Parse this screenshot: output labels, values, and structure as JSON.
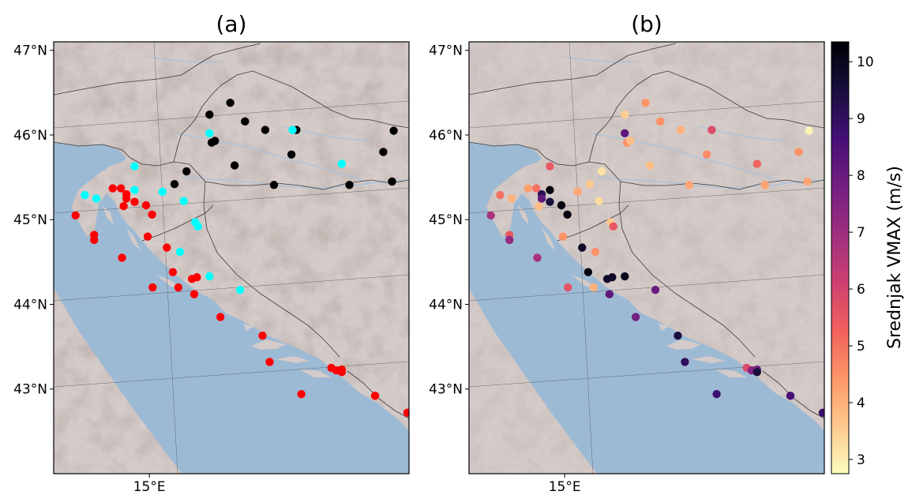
{
  "panels": [
    {
      "id": "a",
      "title": "(a)",
      "lat_labels": [
        "47°N",
        "46°N",
        "45°N",
        "44°N",
        "43°N"
      ],
      "lon_labels": [
        "15°E"
      ],
      "extent": {
        "lon": [
          13.25,
          19.75
        ],
        "lat": [
          42.0,
          47.1
        ]
      },
      "point_groups": [
        {
          "color": "#000000",
          "points": [
            [
              16.48,
              46.38
            ],
            [
              16.1,
              46.24
            ],
            [
              16.75,
              46.16
            ],
            [
              17.12,
              46.06
            ],
            [
              16.14,
              45.91
            ],
            [
              16.2,
              45.93
            ],
            [
              17.69,
              46.06
            ],
            [
              19.47,
              46.05
            ],
            [
              17.6,
              45.77
            ],
            [
              19.28,
              45.8
            ],
            [
              16.56,
              45.64
            ],
            [
              15.68,
              45.57
            ],
            [
              15.46,
              45.42
            ],
            [
              17.28,
              45.41
            ],
            [
              18.66,
              45.41
            ],
            [
              19.44,
              45.45
            ]
          ]
        },
        {
          "color": "#00ffff",
          "points": [
            [
              16.1,
              46.02
            ],
            [
              17.62,
              46.06
            ],
            [
              18.52,
              45.66
            ],
            [
              14.73,
              45.63
            ],
            [
              14.73,
              45.35
            ],
            [
              15.24,
              45.33
            ],
            [
              15.63,
              45.22
            ],
            [
              13.82,
              45.29
            ],
            [
              14.03,
              45.25
            ],
            [
              15.84,
              44.97
            ],
            [
              15.89,
              44.92
            ],
            [
              15.56,
              44.62
            ],
            [
              16.1,
              44.33
            ],
            [
              16.66,
              44.17
            ]
          ]
        },
        {
          "color": "#ff0000",
          "points": [
            [
              13.65,
              45.05
            ],
            [
              13.99,
              44.82
            ],
            [
              13.99,
              44.76
            ],
            [
              14.33,
              45.37
            ],
            [
              14.48,
              45.37
            ],
            [
              14.58,
              45.3
            ],
            [
              14.58,
              45.25
            ],
            [
              14.73,
              45.21
            ],
            [
              14.94,
              45.17
            ],
            [
              15.05,
              45.06
            ],
            [
              14.53,
              45.16
            ],
            [
              14.97,
              44.8
            ],
            [
              14.5,
              44.55
            ],
            [
              15.32,
              44.67
            ],
            [
              15.43,
              44.38
            ],
            [
              15.06,
              44.2
            ],
            [
              15.53,
              44.2
            ],
            [
              15.78,
              44.3
            ],
            [
              15.87,
              44.32
            ],
            [
              15.82,
              44.12
            ],
            [
              16.3,
              43.85
            ],
            [
              17.07,
              43.63
            ],
            [
              17.2,
              43.32
            ],
            [
              17.78,
              42.94
            ],
            [
              18.33,
              43.25
            ],
            [
              18.42,
              43.22
            ],
            [
              18.52,
              43.23
            ],
            [
              18.52,
              43.2
            ],
            [
              19.13,
              42.92
            ],
            [
              19.72,
              42.72
            ]
          ]
        }
      ]
    },
    {
      "id": "b",
      "title": "(b)",
      "lat_labels": [
        "47°N",
        "46°N",
        "45°N",
        "44°N",
        "43°N"
      ],
      "lon_labels": [
        "15°E"
      ],
      "extent": {
        "lon": [
          13.25,
          19.75
        ],
        "lat": [
          42.0,
          47.1
        ]
      },
      "points": [
        [
          16.48,
          46.38,
          4.5
        ],
        [
          16.1,
          46.24,
          3.5
        ],
        [
          16.75,
          46.16,
          4.5
        ],
        [
          17.12,
          46.06,
          4.0
        ],
        [
          16.14,
          45.91,
          4.5
        ],
        [
          16.2,
          45.93,
          3.8
        ],
        [
          17.69,
          46.06,
          5.8
        ],
        [
          19.47,
          46.05,
          2.9
        ],
        [
          17.6,
          45.77,
          4.6
        ],
        [
          19.28,
          45.8,
          4.5
        ],
        [
          16.56,
          45.64,
          3.8
        ],
        [
          15.68,
          45.57,
          3.2
        ],
        [
          15.46,
          45.42,
          3.6
        ],
        [
          17.28,
          45.41,
          4.2
        ],
        [
          18.66,
          45.41,
          4.2
        ],
        [
          19.44,
          45.45,
          4.2
        ],
        [
          16.1,
          46.02,
          8.2
        ],
        [
          18.52,
          45.66,
          5.2
        ],
        [
          14.73,
          45.63,
          5.5
        ],
        [
          14.73,
          45.35,
          10.2
        ],
        [
          15.24,
          45.33,
          4.2
        ],
        [
          15.63,
          45.22,
          3.3
        ],
        [
          13.82,
          45.29,
          5.0
        ],
        [
          14.03,
          45.25,
          4.0
        ],
        [
          15.84,
          44.97,
          3.6
        ],
        [
          15.89,
          44.92,
          5.5
        ],
        [
          15.56,
          44.62,
          4.5
        ],
        [
          16.1,
          44.33,
          10.0
        ],
        [
          16.66,
          44.17,
          8.0
        ],
        [
          13.65,
          45.05,
          6.8
        ],
        [
          13.99,
          44.82,
          5.5
        ],
        [
          13.99,
          44.76,
          7.2
        ],
        [
          14.33,
          45.37,
          4.3
        ],
        [
          14.48,
          45.37,
          5.0
        ],
        [
          14.58,
          45.3,
          9.2
        ],
        [
          14.58,
          45.25,
          8.2
        ],
        [
          14.73,
          45.21,
          9.5
        ],
        [
          14.94,
          45.17,
          10.2
        ],
        [
          15.05,
          45.06,
          10.2
        ],
        [
          14.53,
          45.16,
          3.8
        ],
        [
          14.97,
          44.8,
          4.5
        ],
        [
          14.5,
          44.55,
          6.8
        ],
        [
          15.32,
          44.67,
          9.8
        ],
        [
          15.43,
          44.38,
          10.2
        ],
        [
          15.06,
          44.2,
          5.6
        ],
        [
          15.53,
          44.2,
          4.0
        ],
        [
          15.78,
          44.3,
          9.8
        ],
        [
          15.87,
          44.32,
          9.8
        ],
        [
          15.82,
          44.12,
          8.2
        ],
        [
          16.3,
          43.85,
          7.8
        ],
        [
          17.07,
          43.63,
          9.5
        ],
        [
          17.2,
          43.32,
          9.0
        ],
        [
          17.78,
          42.94,
          8.8
        ],
        [
          18.33,
          43.25,
          5.8
        ],
        [
          18.42,
          43.22,
          7.5
        ],
        [
          18.52,
          43.23,
          7.8
        ],
        [
          18.52,
          43.2,
          9.5
        ],
        [
          19.13,
          42.92,
          8.6
        ],
        [
          19.72,
          42.72,
          8.8
        ]
      ]
    }
  ],
  "colorbar": {
    "label": "Srednjak VMAX (m/s)",
    "ticks": [
      "3",
      "4",
      "5",
      "6",
      "7",
      "8",
      "9",
      "10"
    ],
    "min": 2.75,
    "max": 10.35,
    "stops": [
      "#fcfdbf",
      "#fec98d",
      "#fd9668",
      "#f1605d",
      "#cd4071",
      "#9e2f7f",
      "#721f81",
      "#440f76",
      "#180f3d",
      "#000004"
    ]
  },
  "colors": {
    "sea": "#9dbad5",
    "land": "#d5cbc8",
    "relief": "#b8aaa6",
    "border": "#3a3a3a",
    "river": "#a9c2dc"
  }
}
